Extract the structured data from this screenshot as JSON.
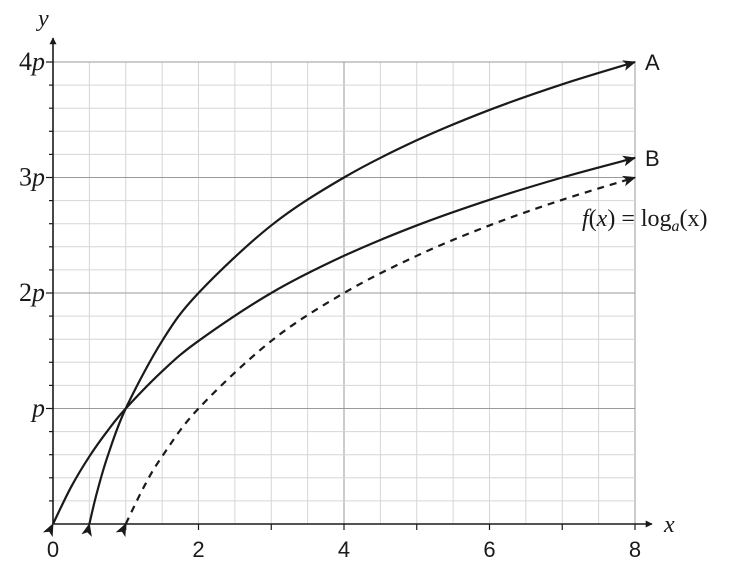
{
  "chart_data": {
    "type": "line",
    "xlabel": "x",
    "ylabel": "y",
    "xlim": [
      0,
      8
    ],
    "ylim": [
      0,
      4
    ],
    "x_ticks": [
      {
        "value": 0,
        "label": "0"
      },
      {
        "value": 2,
        "label": "2"
      },
      {
        "value": 4,
        "label": "4"
      },
      {
        "value": 6,
        "label": "6"
      },
      {
        "value": 8,
        "label": "8"
      }
    ],
    "y_ticks": [
      {
        "value": 1,
        "label": "p",
        "coef": ""
      },
      {
        "value": 2,
        "label": "2p",
        "coef": "2"
      },
      {
        "value": 3,
        "label": "3p",
        "coef": "3"
      },
      {
        "value": 4,
        "label": "4p",
        "coef": "4"
      }
    ],
    "grid": true,
    "grid_minor_x": 0.5,
    "grid_minor_y": 0.2,
    "series": [
      {
        "name": "A",
        "style": "solid",
        "x": [
          0.5,
          0.6,
          0.75,
          1,
          1.5,
          2,
          3,
          4,
          5,
          6,
          7,
          8
        ],
        "y": [
          0,
          0.263,
          0.585,
          1,
          1.585,
          2,
          2.585,
          3,
          3.322,
          3.585,
          3.807,
          4
        ]
      },
      {
        "name": "B",
        "style": "solid",
        "x": [
          0,
          0.25,
          0.5,
          0.75,
          1,
          1.5,
          2,
          3,
          4,
          5,
          6,
          7,
          8
        ],
        "y": [
          0,
          0.322,
          0.585,
          0.807,
          1,
          1.322,
          1.585,
          2,
          2.322,
          2.585,
          2.807,
          3,
          3.17
        ]
      },
      {
        "name": "",
        "style": "dashed",
        "x": [
          1,
          1.25,
          1.5,
          2,
          3,
          4,
          5,
          6,
          7,
          8
        ],
        "y": [
          0,
          0.322,
          0.585,
          1,
          1.585,
          2,
          2.322,
          2.585,
          2.807,
          3
        ]
      }
    ],
    "annotation": {
      "f": "f",
      "open": "(",
      "var": "x",
      "close": ")",
      "equals": " = log",
      "base": "a",
      "arg": "(x)"
    }
  }
}
